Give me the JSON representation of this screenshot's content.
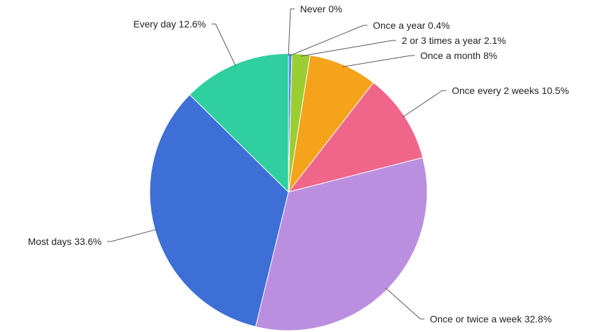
{
  "chart_data": {
    "type": "pie",
    "title": "",
    "slices": [
      {
        "label": "Never",
        "value": 0,
        "display": "0%",
        "color": "#cccccc"
      },
      {
        "label": "Once a year",
        "value": 0.4,
        "display": "0.4%",
        "color": "#4a90e2"
      },
      {
        "label": "2 or 3 times a year",
        "value": 2.1,
        "display": "2.1%",
        "color": "#9acd32"
      },
      {
        "label": "Once a month",
        "value": 8,
        "display": "8%",
        "color": "#f5a31a"
      },
      {
        "label": "Once every 2 weeks",
        "value": 10.5,
        "display": "10.5%",
        "color": "#f0668a"
      },
      {
        "label": "Once or twice a week",
        "value": 32.8,
        "display": "32.8%",
        "color": "#bb8fe0"
      },
      {
        "label": "Most days",
        "value": 33.6,
        "display": "33.6%",
        "color": "#3d6fd6"
      },
      {
        "label": "Every day",
        "value": 12.6,
        "display": "12.6%",
        "color": "#2fcf9f"
      }
    ]
  }
}
